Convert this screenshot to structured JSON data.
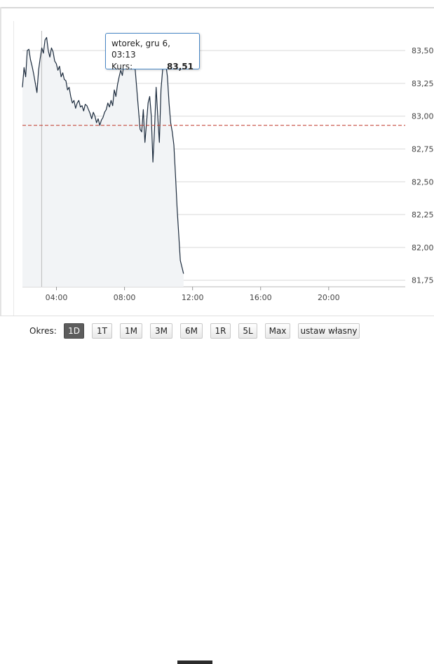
{
  "chart_data": {
    "type": "line",
    "x_start_hour": 2.0,
    "x_end_hour": 11.47,
    "xlim_hours": [
      2.0,
      24.5
    ],
    "ylim": [
      81.7,
      83.65
    ],
    "x_ticks": [
      {
        "hour": 4,
        "label": "04:00"
      },
      {
        "hour": 8,
        "label": "08:00"
      },
      {
        "hour": 12,
        "label": "12:00"
      },
      {
        "hour": 16,
        "label": "16:00"
      },
      {
        "hour": 20,
        "label": "20:00"
      }
    ],
    "y_ticks": [
      {
        "value": 83.5,
        "label": "83,50"
      },
      {
        "value": 83.25,
        "label": "83,25"
      },
      {
        "value": 83.0,
        "label": "83,00"
      },
      {
        "value": 82.75,
        "label": "82,75"
      },
      {
        "value": 82.5,
        "label": "82,50"
      },
      {
        "value": 82.25,
        "label": "82,25"
      },
      {
        "value": 82.0,
        "label": "82,00"
      },
      {
        "value": 81.75,
        "label": "81,75"
      }
    ],
    "reference_line": 82.93,
    "crosshair_hour": 3.13,
    "grid": "horizontal",
    "series": [
      {
        "values": [
          83.22,
          83.37,
          83.3,
          83.5,
          83.51,
          83.43,
          83.38,
          83.32,
          83.25,
          83.18,
          83.35,
          83.44,
          83.52,
          83.48,
          83.58,
          83.6,
          83.5,
          83.45,
          83.52,
          83.49,
          83.42,
          83.4,
          83.35,
          83.38,
          83.3,
          83.33,
          83.28,
          83.27,
          83.2,
          83.22,
          83.15,
          83.1,
          83.12,
          83.06,
          83.1,
          83.12,
          83.07,
          83.08,
          83.04,
          83.09,
          83.08,
          83.05,
          83.02,
          82.98,
          83.03,
          83.0,
          82.95,
          82.98,
          82.93,
          82.97,
          82.99,
          83.03,
          83.05,
          83.1,
          83.07,
          83.12,
          83.08,
          83.2,
          83.15,
          83.24,
          83.3,
          83.35,
          83.31,
          83.4,
          83.5,
          83.46,
          83.52,
          83.5,
          83.45,
          83.4,
          83.35,
          83.2,
          83.05,
          82.9,
          82.88,
          83.05,
          82.8,
          82.95,
          83.1,
          83.15,
          83.0,
          82.65,
          82.9,
          83.22,
          83.0,
          82.8,
          83.2,
          83.35,
          83.51,
          83.4,
          83.3,
          83.1,
          82.95,
          82.88,
          82.78,
          82.55,
          82.3,
          82.1,
          81.9,
          81.85,
          81.8
        ]
      }
    ]
  },
  "tooltip": {
    "date": "wtorek, gru 6, 03:13",
    "label": "Kurs:",
    "value": "83,51"
  },
  "periods": {
    "label": "Okres:",
    "buttons": [
      "1D",
      "1T",
      "1M",
      "3M",
      "6M",
      "1R",
      "5L",
      "Max",
      "ustaw własny"
    ],
    "active": "1D"
  },
  "colors": {
    "line": "#1c2b3d",
    "area": "#f2f4f6",
    "reference": "#c0392b",
    "grid": "#d9d9d9",
    "active_button": "#5d5d5d"
  }
}
